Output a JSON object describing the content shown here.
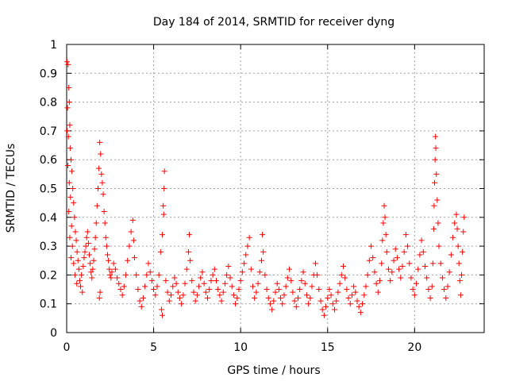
{
  "chart_data": {
    "type": "scatter",
    "title": "Day 184 of 2014, SRMTID for receiver dyng",
    "xlabel": "GPS time / hours",
    "ylabel": "SRMTID / TECUs",
    "xlim": [
      0,
      24
    ],
    "ylim": [
      0,
      1
    ],
    "xticks": [
      0,
      5,
      10,
      15,
      20
    ],
    "yticks": [
      0,
      0.1,
      0.2,
      0.3,
      0.4,
      0.5,
      0.6,
      0.7,
      0.8,
      0.9,
      1
    ],
    "xtick_labels": [
      "0",
      "5",
      "10",
      "15",
      "20"
    ],
    "ytick_labels": [
      "0",
      "0.1",
      "0.2",
      "0.3",
      "0.4",
      "0.5",
      "0.6",
      "0.7",
      "0.8",
      "0.9",
      "1"
    ],
    "grid": true,
    "marker": "+",
    "series": [
      {
        "name": "SRMTID",
        "color": "#ff0000",
        "points": [
          [
            0.02,
            0.94
          ],
          [
            0.08,
            0.93
          ],
          [
            0.12,
            0.85
          ],
          [
            0.15,
            0.8
          ],
          [
            0.05,
            0.78
          ],
          [
            0.18,
            0.72
          ],
          [
            0.03,
            0.7
          ],
          [
            0.1,
            0.68
          ],
          [
            0.2,
            0.64
          ],
          [
            0.25,
            0.6
          ],
          [
            0.07,
            0.58
          ],
          [
            0.3,
            0.56
          ],
          [
            0.15,
            0.52
          ],
          [
            0.35,
            0.5
          ],
          [
            0.22,
            0.47
          ],
          [
            0.4,
            0.45
          ],
          [
            0.12,
            0.42
          ],
          [
            0.45,
            0.4
          ],
          [
            0.28,
            0.37
          ],
          [
            0.5,
            0.35
          ],
          [
            0.18,
            0.33
          ],
          [
            0.55,
            0.32
          ],
          [
            0.33,
            0.3
          ],
          [
            0.6,
            0.28
          ],
          [
            0.25,
            0.26
          ],
          [
            0.65,
            0.25
          ],
          [
            0.4,
            0.24
          ],
          [
            0.7,
            0.22
          ],
          [
            0.48,
            0.2
          ],
          [
            0.75,
            0.18
          ],
          [
            0.58,
            0.17
          ],
          [
            0.8,
            0.16
          ],
          [
            0.9,
            0.14
          ],
          [
            0.85,
            0.2
          ],
          [
            0.95,
            0.23
          ],
          [
            1.0,
            0.26
          ],
          [
            1.05,
            0.28
          ],
          [
            1.1,
            0.3
          ],
          [
            1.15,
            0.33
          ],
          [
            1.2,
            0.35
          ],
          [
            1.25,
            0.31
          ],
          [
            1.3,
            0.27
          ],
          [
            1.35,
            0.24
          ],
          [
            1.4,
            0.21
          ],
          [
            1.45,
            0.19
          ],
          [
            1.5,
            0.22
          ],
          [
            1.55,
            0.25
          ],
          [
            1.6,
            0.29
          ],
          [
            1.65,
            0.33
          ],
          [
            1.7,
            0.38
          ],
          [
            1.75,
            0.44
          ],
          [
            1.8,
            0.5
          ],
          [
            1.85,
            0.57
          ],
          [
            1.9,
            0.66
          ],
          [
            1.95,
            0.62
          ],
          [
            2.0,
            0.55
          ],
          [
            2.05,
            0.52
          ],
          [
            2.1,
            0.48
          ],
          [
            2.15,
            0.42
          ],
          [
            2.2,
            0.38
          ],
          [
            2.25,
            0.33
          ],
          [
            2.3,
            0.3
          ],
          [
            1.88,
            0.12
          ],
          [
            1.92,
            0.14
          ],
          [
            2.35,
            0.27
          ],
          [
            2.4,
            0.25
          ],
          [
            2.45,
            0.22
          ],
          [
            2.5,
            0.2
          ],
          [
            2.55,
            0.19
          ],
          [
            2.6,
            0.21
          ],
          [
            2.7,
            0.24
          ],
          [
            2.8,
            0.22
          ],
          [
            2.9,
            0.19
          ],
          [
            3.0,
            0.17
          ],
          [
            3.1,
            0.15
          ],
          [
            3.2,
            0.13
          ],
          [
            3.3,
            0.16
          ],
          [
            3.4,
            0.2
          ],
          [
            3.5,
            0.25
          ],
          [
            3.6,
            0.3
          ],
          [
            3.7,
            0.35
          ],
          [
            3.8,
            0.39
          ],
          [
            3.85,
            0.32
          ],
          [
            3.9,
            0.26
          ],
          [
            4.0,
            0.2
          ],
          [
            4.1,
            0.15
          ],
          [
            4.2,
            0.11
          ],
          [
            4.3,
            0.09
          ],
          [
            4.4,
            0.12
          ],
          [
            4.5,
            0.16
          ],
          [
            4.6,
            0.2
          ],
          [
            4.7,
            0.24
          ],
          [
            4.8,
            0.21
          ],
          [
            4.9,
            0.18
          ],
          [
            5.0,
            0.15
          ],
          [
            5.1,
            0.13
          ],
          [
            5.2,
            0.16
          ],
          [
            5.3,
            0.2
          ],
          [
            5.4,
            0.28
          ],
          [
            5.5,
            0.34
          ],
          [
            5.55,
            0.44
          ],
          [
            5.6,
            0.5
          ],
          [
            5.62,
            0.56
          ],
          [
            5.58,
            0.41
          ],
          [
            5.45,
            0.08
          ],
          [
            5.5,
            0.06
          ],
          [
            5.7,
            0.18
          ],
          [
            5.8,
            0.14
          ],
          [
            5.9,
            0.11
          ],
          [
            6.0,
            0.13
          ],
          [
            6.1,
            0.16
          ],
          [
            6.2,
            0.19
          ],
          [
            6.3,
            0.17
          ],
          [
            6.4,
            0.14
          ],
          [
            6.5,
            0.12
          ],
          [
            6.6,
            0.1
          ],
          [
            6.7,
            0.13
          ],
          [
            6.8,
            0.17
          ],
          [
            6.9,
            0.22
          ],
          [
            7.0,
            0.28
          ],
          [
            7.05,
            0.34
          ],
          [
            7.1,
            0.25
          ],
          [
            7.2,
            0.18
          ],
          [
            7.3,
            0.14
          ],
          [
            7.4,
            0.11
          ],
          [
            7.5,
            0.13
          ],
          [
            7.6,
            0.16
          ],
          [
            7.7,
            0.19
          ],
          [
            7.8,
            0.21
          ],
          [
            7.9,
            0.17
          ],
          [
            8.0,
            0.14
          ],
          [
            8.1,
            0.12
          ],
          [
            8.2,
            0.15
          ],
          [
            8.3,
            0.18
          ],
          [
            8.4,
            0.2
          ],
          [
            8.5,
            0.22
          ],
          [
            8.6,
            0.18
          ],
          [
            8.7,
            0.15
          ],
          [
            8.8,
            0.13
          ],
          [
            8.9,
            0.11
          ],
          [
            9.0,
            0.14
          ],
          [
            9.1,
            0.17
          ],
          [
            9.2,
            0.2
          ],
          [
            9.3,
            0.23
          ],
          [
            9.4,
            0.19
          ],
          [
            9.5,
            0.16
          ],
          [
            9.6,
            0.13
          ],
          [
            9.7,
            0.1
          ],
          [
            9.8,
            0.12
          ],
          [
            9.9,
            0.15
          ],
          [
            10.0,
            0.18
          ],
          [
            10.1,
            0.21
          ],
          [
            10.2,
            0.24
          ],
          [
            10.3,
            0.27
          ],
          [
            10.4,
            0.3
          ],
          [
            10.5,
            0.33
          ],
          [
            10.6,
            0.22
          ],
          [
            10.7,
            0.16
          ],
          [
            10.8,
            0.12
          ],
          [
            10.9,
            0.14
          ],
          [
            11.0,
            0.17
          ],
          [
            11.1,
            0.21
          ],
          [
            11.2,
            0.25
          ],
          [
            11.25,
            0.34
          ],
          [
            11.3,
            0.28
          ],
          [
            11.4,
            0.2
          ],
          [
            11.5,
            0.15
          ],
          [
            11.6,
            0.12
          ],
          [
            11.7,
            0.1
          ],
          [
            11.8,
            0.08
          ],
          [
            11.9,
            0.11
          ],
          [
            12.0,
            0.14
          ],
          [
            12.1,
            0.17
          ],
          [
            12.2,
            0.15
          ],
          [
            12.3,
            0.12
          ],
          [
            12.4,
            0.1
          ],
          [
            12.5,
            0.13
          ],
          [
            12.6,
            0.16
          ],
          [
            12.7,
            0.19
          ],
          [
            12.8,
            0.22
          ],
          [
            12.9,
            0.18
          ],
          [
            13.0,
            0.14
          ],
          [
            13.1,
            0.11
          ],
          [
            13.2,
            0.09
          ],
          [
            13.3,
            0.12
          ],
          [
            13.4,
            0.15
          ],
          [
            13.5,
            0.18
          ],
          [
            13.6,
            0.21
          ],
          [
            13.7,
            0.17
          ],
          [
            13.8,
            0.13
          ],
          [
            13.9,
            0.1
          ],
          [
            14.0,
            0.12
          ],
          [
            14.1,
            0.16
          ],
          [
            14.2,
            0.2
          ],
          [
            14.3,
            0.24
          ],
          [
            14.4,
            0.2
          ],
          [
            14.5,
            0.15
          ],
          [
            14.6,
            0.11
          ],
          [
            14.7,
            0.08
          ],
          [
            14.8,
            0.06
          ],
          [
            14.9,
            0.09
          ],
          [
            15.0,
            0.12
          ],
          [
            15.1,
            0.15
          ],
          [
            15.2,
            0.13
          ],
          [
            15.3,
            0.1
          ],
          [
            15.4,
            0.08
          ],
          [
            15.5,
            0.11
          ],
          [
            15.6,
            0.14
          ],
          [
            15.7,
            0.17
          ],
          [
            15.8,
            0.2
          ],
          [
            15.9,
            0.23
          ],
          [
            16.0,
            0.19
          ],
          [
            16.1,
            0.15
          ],
          [
            16.2,
            0.12
          ],
          [
            16.3,
            0.1
          ],
          [
            16.4,
            0.13
          ],
          [
            16.5,
            0.16
          ],
          [
            16.6,
            0.14
          ],
          [
            16.7,
            0.11
          ],
          [
            16.8,
            0.09
          ],
          [
            16.9,
            0.07
          ],
          [
            17.0,
            0.1
          ],
          [
            17.1,
            0.13
          ],
          [
            17.2,
            0.16
          ],
          [
            17.3,
            0.2
          ],
          [
            17.4,
            0.25
          ],
          [
            17.5,
            0.3
          ],
          [
            17.6,
            0.26
          ],
          [
            17.7,
            0.21
          ],
          [
            17.8,
            0.17
          ],
          [
            17.9,
            0.14
          ],
          [
            18.0,
            0.18
          ],
          [
            18.1,
            0.24
          ],
          [
            18.15,
            0.32
          ],
          [
            18.2,
            0.38
          ],
          [
            18.25,
            0.44
          ],
          [
            18.3,
            0.4
          ],
          [
            18.35,
            0.34
          ],
          [
            18.4,
            0.28
          ],
          [
            18.5,
            0.22
          ],
          [
            18.6,
            0.18
          ],
          [
            18.7,
            0.21
          ],
          [
            18.8,
            0.25
          ],
          [
            18.9,
            0.29
          ],
          [
            19.0,
            0.26
          ],
          [
            19.1,
            0.22
          ],
          [
            19.2,
            0.19
          ],
          [
            19.3,
            0.23
          ],
          [
            19.4,
            0.28
          ],
          [
            19.5,
            0.34
          ],
          [
            19.6,
            0.3
          ],
          [
            19.7,
            0.24
          ],
          [
            19.8,
            0.19
          ],
          [
            19.9,
            0.15
          ],
          [
            20.0,
            0.13
          ],
          [
            20.1,
            0.17
          ],
          [
            20.2,
            0.22
          ],
          [
            20.3,
            0.27
          ],
          [
            20.4,
            0.32
          ],
          [
            20.5,
            0.28
          ],
          [
            20.6,
            0.23
          ],
          [
            20.7,
            0.19
          ],
          [
            20.8,
            0.15
          ],
          [
            20.9,
            0.12
          ],
          [
            21.0,
            0.16
          ],
          [
            21.05,
            0.24
          ],
          [
            21.1,
            0.36
          ],
          [
            21.12,
            0.44
          ],
          [
            21.15,
            0.52
          ],
          [
            21.18,
            0.6
          ],
          [
            21.2,
            0.68
          ],
          [
            21.22,
            0.64
          ],
          [
            21.25,
            0.55
          ],
          [
            21.3,
            0.46
          ],
          [
            21.35,
            0.38
          ],
          [
            21.4,
            0.3
          ],
          [
            21.5,
            0.24
          ],
          [
            21.6,
            0.19
          ],
          [
            21.7,
            0.15
          ],
          [
            21.8,
            0.12
          ],
          [
            21.9,
            0.16
          ],
          [
            22.0,
            0.21
          ],
          [
            22.1,
            0.27
          ],
          [
            22.2,
            0.33
          ],
          [
            22.3,
            0.38
          ],
          [
            22.4,
            0.41
          ],
          [
            22.45,
            0.36
          ],
          [
            22.5,
            0.3
          ],
          [
            22.55,
            0.24
          ],
          [
            22.6,
            0.18
          ],
          [
            22.65,
            0.13
          ],
          [
            22.7,
            0.2
          ],
          [
            22.75,
            0.28
          ],
          [
            22.8,
            0.35
          ],
          [
            22.85,
            0.4
          ]
        ]
      }
    ]
  }
}
